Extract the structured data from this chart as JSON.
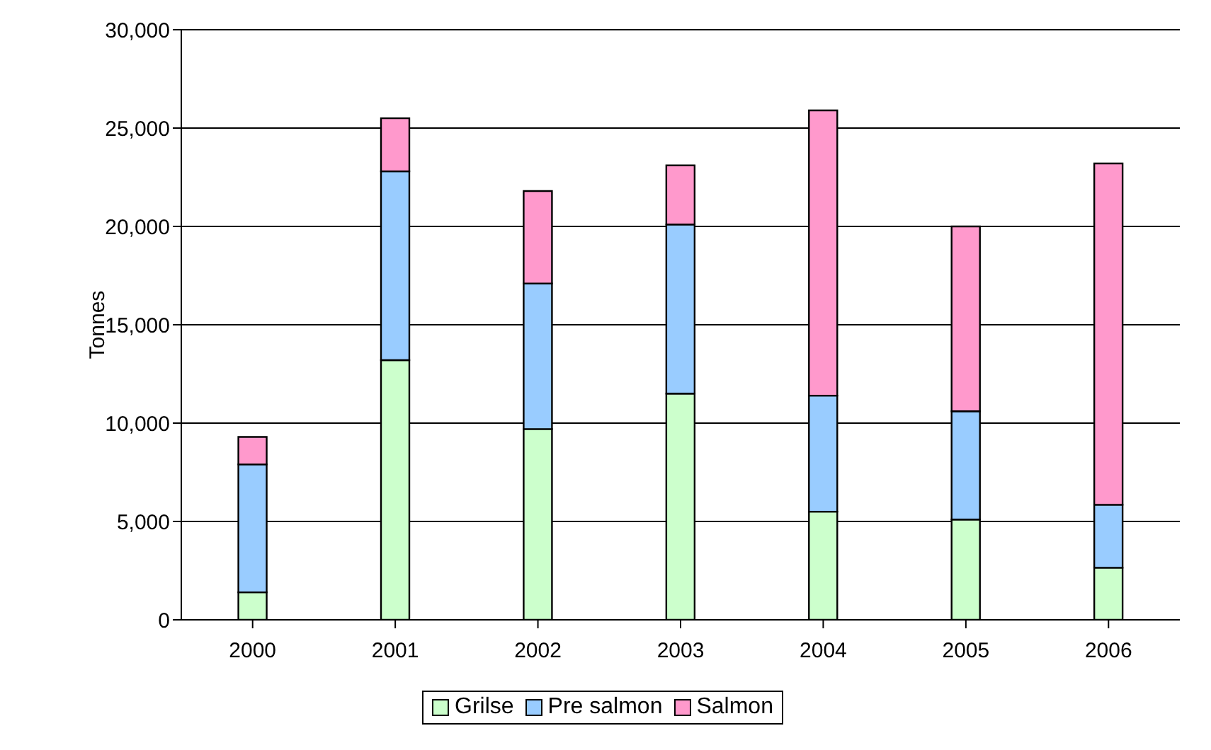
{
  "chart_data": {
    "type": "bar",
    "stacked": true,
    "ylabel": "Tonnes",
    "categories": [
      "2000",
      "2001",
      "2002",
      "2003",
      "2004",
      "2005",
      "2006"
    ],
    "series": [
      {
        "name": "Grilse",
        "color": "#ccffcc",
        "values": [
          1400,
          13200,
          9700,
          11500,
          5500,
          5100,
          2650
        ]
      },
      {
        "name": "Pre salmon",
        "color": "#99ccff",
        "values": [
          6500,
          9600,
          7400,
          8600,
          5900,
          5500,
          3200
        ]
      },
      {
        "name": "Salmon",
        "color": "#ff99cc",
        "values": [
          1400,
          2700,
          4700,
          3000,
          14500,
          9400,
          17350
        ]
      }
    ],
    "ylim": [
      0,
      30000
    ],
    "yticks": [
      {
        "value": 0,
        "label": "0"
      },
      {
        "value": 5000,
        "label": "5,000"
      },
      {
        "value": 10000,
        "label": "10,000"
      },
      {
        "value": 15000,
        "label": "15,000"
      },
      {
        "value": 20000,
        "label": "20,000"
      },
      {
        "value": 25000,
        "label": "25,000"
      },
      {
        "value": 30000,
        "label": "30,000"
      }
    ],
    "grid": "y",
    "legend": "bottom"
  }
}
